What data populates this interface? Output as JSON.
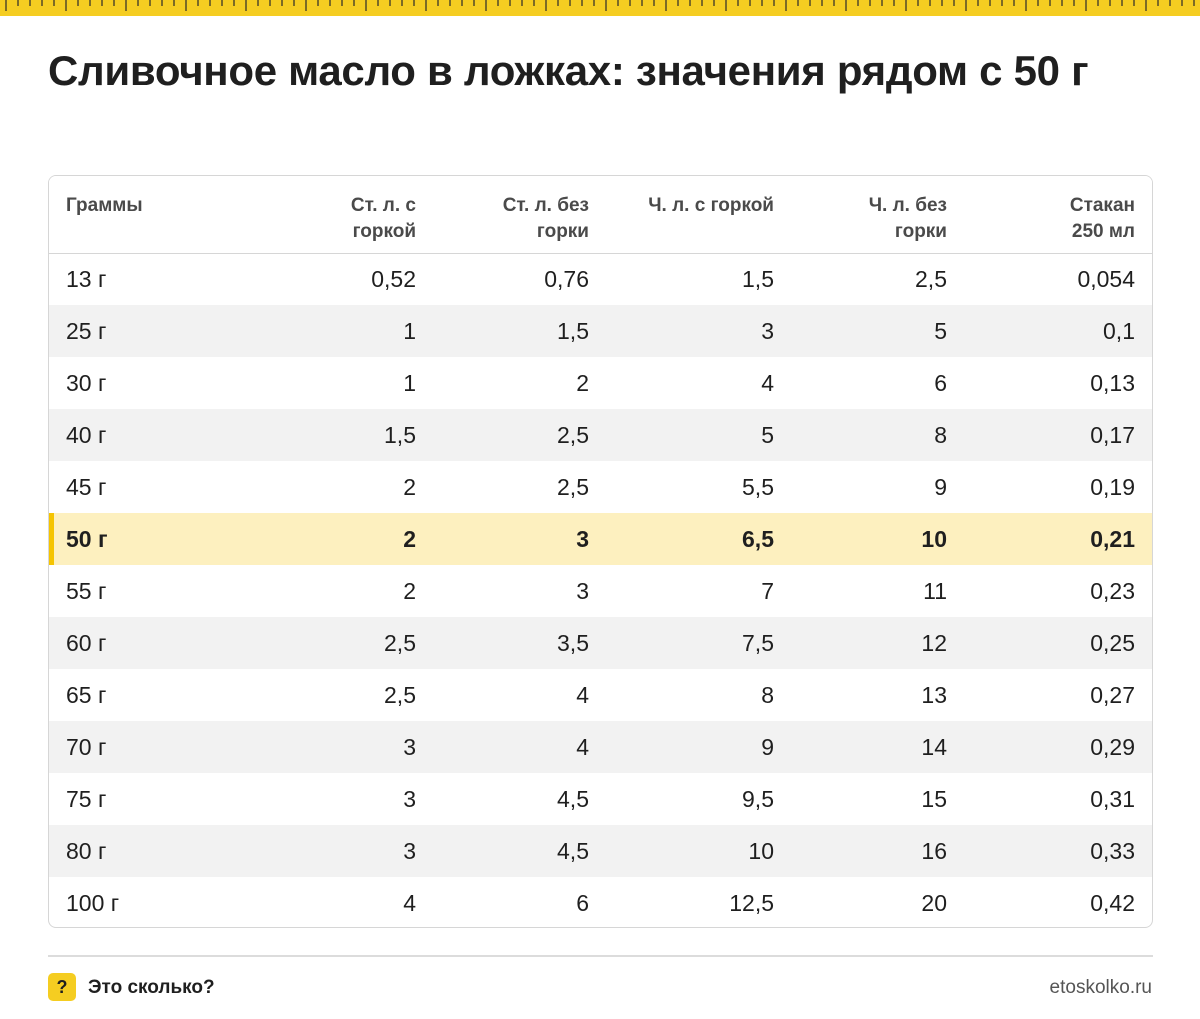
{
  "header": {
    "title": "Сливочное масло в ложках: значения рядом с 50 г"
  },
  "table": {
    "columns": [
      "Граммы",
      "Ст. л. с горкой",
      "Ст. л. без горки",
      "Ч. л. с горкой",
      "Ч. л. без горки",
      "Стакан 250 мл"
    ],
    "rows": [
      [
        "13 г",
        "0,52",
        "0,76",
        "1,5",
        "2,5",
        "0,054"
      ],
      [
        "25 г",
        "1",
        "1,5",
        "3",
        "5",
        "0,1"
      ],
      [
        "30 г",
        "1",
        "2",
        "4",
        "6",
        "0,13"
      ],
      [
        "40 г",
        "1,5",
        "2,5",
        "5",
        "8",
        "0,17"
      ],
      [
        "45 г",
        "2",
        "2,5",
        "5,5",
        "9",
        "0,19"
      ],
      [
        "50 г",
        "2",
        "3",
        "6,5",
        "10",
        "0,21"
      ],
      [
        "55 г",
        "2",
        "3",
        "7",
        "11",
        "0,23"
      ],
      [
        "60 г",
        "2,5",
        "3,5",
        "7,5",
        "12",
        "0,25"
      ],
      [
        "65 г",
        "2,5",
        "4",
        "8",
        "13",
        "0,27"
      ],
      [
        "70 г",
        "3",
        "4",
        "9",
        "14",
        "0,29"
      ],
      [
        "75 г",
        "3",
        "4,5",
        "9,5",
        "15",
        "0,31"
      ],
      [
        "80 г",
        "3",
        "4,5",
        "10",
        "16",
        "0,33"
      ],
      [
        "100 г",
        "4",
        "6",
        "12,5",
        "20",
        "0,42"
      ]
    ],
    "highlight_row": 5
  },
  "footer": {
    "badge": "?",
    "brand": "Это сколько?",
    "site": "etoskolko.ru"
  },
  "colors": {
    "accent": "#f5cd21",
    "highlight": "#fdf0bf",
    "stripe": "#f2f2f2"
  }
}
